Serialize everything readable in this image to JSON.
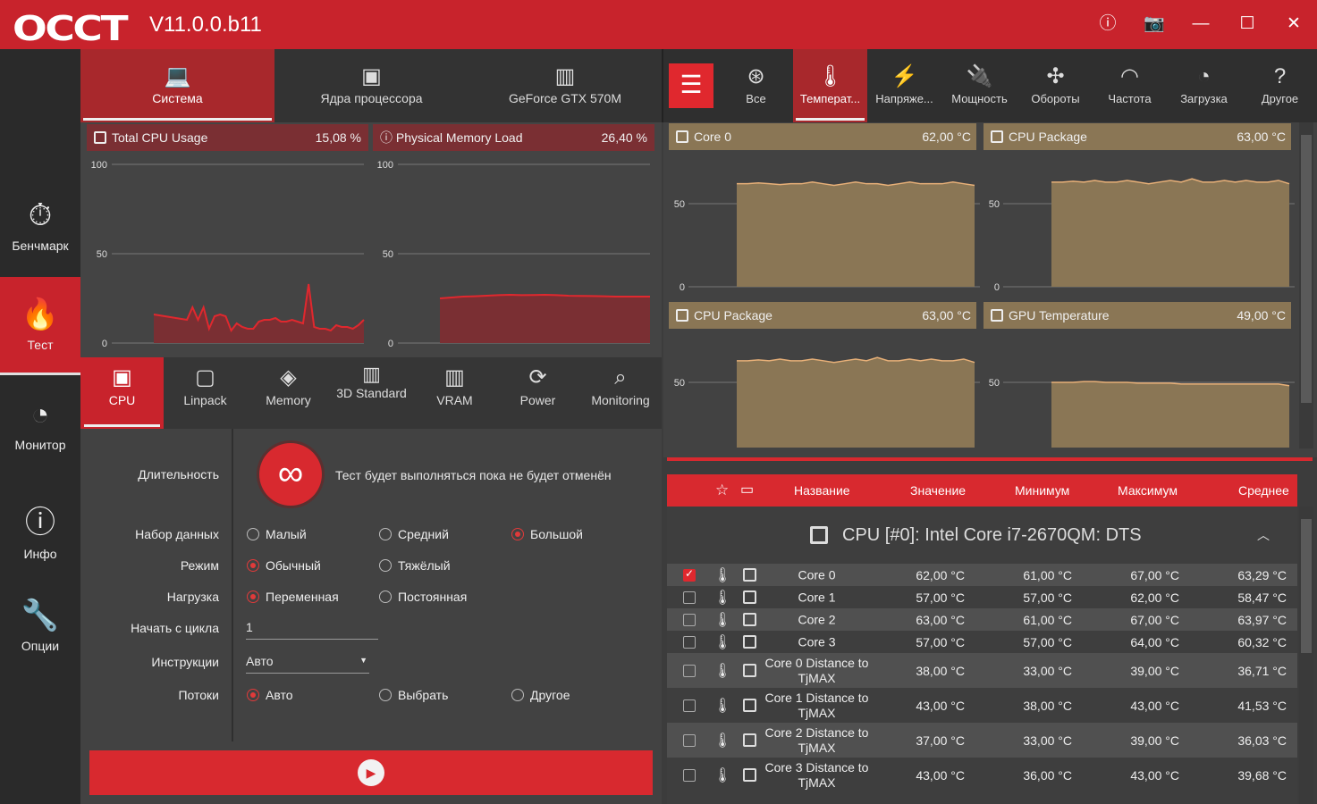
{
  "app": {
    "logo": "OCCT",
    "version": "V11.0.0.b11"
  },
  "titlebar": {
    "icons": [
      "info-icon",
      "camera-icon",
      "minimize-icon",
      "maximize-icon",
      "close-icon"
    ]
  },
  "sidebar": {
    "items": [
      {
        "label": "Бенчмарк",
        "icon": "stopwatch-icon"
      },
      {
        "label": "Тест",
        "icon": "flame-icon",
        "selected": true
      },
      {
        "label": "Монитор",
        "icon": "gauge-icon"
      },
      {
        "label": "Инфо",
        "icon": "info-icon"
      },
      {
        "label": "Опции",
        "icon": "wrench-icon"
      }
    ]
  },
  "left_tabs": [
    {
      "label": "Система",
      "selected": true
    },
    {
      "label": "Ядра процессора"
    },
    {
      "label": "GeForce GTX 570M"
    }
  ],
  "left_charts": [
    {
      "title": "Total CPU Usage",
      "value": "15,08 %",
      "ticks": [
        "100",
        "50",
        "0"
      ],
      "ymax": 100,
      "series": [
        16,
        15.5,
        15,
        14.5,
        14,
        13.5,
        13,
        20,
        13,
        20,
        8,
        15,
        16,
        15,
        7,
        11,
        9,
        8,
        8,
        12,
        13,
        13,
        14,
        12,
        12,
        13,
        12,
        11,
        33,
        9,
        8,
        8,
        7,
        10,
        9,
        9,
        8,
        10,
        13
      ]
    },
    {
      "title": "Physical Memory Load",
      "value": "26,40 %",
      "ticks": [
        "100",
        "50",
        "0"
      ],
      "ymax": 100,
      "series": [
        25,
        25.5,
        26,
        26.2,
        26.5,
        26.8,
        27,
        26.8,
        26.9,
        27,
        26.8,
        26.5,
        26.4,
        26.3,
        26.2,
        26,
        26,
        26,
        26
      ]
    }
  ],
  "test_tabs": [
    {
      "label": "CPU",
      "selected": true
    },
    {
      "label": "Linpack"
    },
    {
      "label": "Memory"
    },
    {
      "label": "3D Standard"
    },
    {
      "label": "VRAM"
    },
    {
      "label": "Power"
    },
    {
      "label": "Monitoring"
    }
  ],
  "settings": {
    "duration_label": "Длительность",
    "duration_text": "Тест будет выполняться пока не будет отменён",
    "dataset": {
      "label": "Набор данных",
      "options": [
        "Малый",
        "Средний",
        "Большой"
      ],
      "selected": 2
    },
    "mode": {
      "label": "Режим",
      "options": [
        "Обычный",
        "Тяжёлый"
      ],
      "selected": 0
    },
    "load": {
      "label": "Нагрузка",
      "options": [
        "Переменная",
        "Постоянная"
      ],
      "selected": 0
    },
    "start_cycle": {
      "label": "Начать с цикла",
      "value": "1"
    },
    "instructions": {
      "label": "Инструкции",
      "value": "Авто"
    },
    "threads": {
      "label": "Потоки",
      "options": [
        "Авто",
        "Выбрать",
        "Другое"
      ],
      "selected": 0
    }
  },
  "right_tabs": [
    {
      "label": "Все"
    },
    {
      "label": "Температ...",
      "selected": true
    },
    {
      "label": "Напряже..."
    },
    {
      "label": "Мощность"
    },
    {
      "label": "Обороты"
    },
    {
      "label": "Частота"
    },
    {
      "label": "Загрузка"
    },
    {
      "label": "Другое"
    }
  ],
  "temp_charts": [
    {
      "title": "Core 0",
      "value": "62,00 °C",
      "ticks": [
        "50",
        "0"
      ],
      "series": [
        62,
        62,
        62.5,
        62,
        61.5,
        62,
        62,
        63,
        62,
        61,
        62,
        63,
        62,
        62,
        61,
        62,
        63,
        62,
        62,
        62,
        63,
        62,
        61
      ]
    },
    {
      "title": "CPU Package",
      "value": "63,00 °C",
      "ticks": [
        "50",
        "0"
      ],
      "series": [
        63,
        63,
        63.5,
        63,
        64,
        63,
        63,
        64,
        63,
        62,
        63,
        64,
        63,
        65,
        63,
        63,
        64,
        63,
        64,
        63,
        63,
        64,
        62
      ]
    },
    {
      "title": "CPU Package",
      "value": "63,00 °C",
      "ticks": [
        "50"
      ],
      "series": [
        63,
        63,
        63.5,
        63,
        64,
        63,
        63,
        64,
        63,
        62,
        63,
        64,
        63,
        65,
        63,
        63,
        64,
        63,
        64,
        63,
        63,
        64,
        62
      ]
    },
    {
      "title": "GPU Temperature",
      "value": "49,00 °C",
      "ticks": [
        "50"
      ],
      "series": [
        50,
        50,
        50,
        50.5,
        50.5,
        50,
        50,
        50,
        49.5,
        49.5,
        49.5,
        49.5,
        49,
        49,
        49,
        49,
        49,
        49,
        49,
        49,
        49,
        49,
        48
      ]
    }
  ],
  "table": {
    "columns": [
      "Название",
      "Значение",
      "Минимум",
      "Максимум",
      "Среднее"
    ],
    "group": "CPU [#0]: Intel Core i7-2670QM: DTS",
    "rows": [
      {
        "checked": true,
        "name": "Core 0",
        "value": "62,00 °C",
        "min": "61,00 °C",
        "max": "67,00 °C",
        "avg": "63,29 °C"
      },
      {
        "checked": false,
        "name": "Core 1",
        "value": "57,00 °C",
        "min": "57,00 °C",
        "max": "62,00 °C",
        "avg": "58,47 °C"
      },
      {
        "checked": false,
        "name": "Core 2",
        "value": "63,00 °C",
        "min": "61,00 °C",
        "max": "67,00 °C",
        "avg": "63,97 °C"
      },
      {
        "checked": false,
        "name": "Core 3",
        "value": "57,00 °C",
        "min": "57,00 °C",
        "max": "64,00 °C",
        "avg": "60,32 °C"
      },
      {
        "checked": false,
        "name": "Core 0 Distance to TjMAX",
        "value": "38,00 °C",
        "min": "33,00 °C",
        "max": "39,00 °C",
        "avg": "36,71 °C"
      },
      {
        "checked": false,
        "name": "Core 1 Distance to TjMAX",
        "value": "43,00 °C",
        "min": "38,00 °C",
        "max": "43,00 °C",
        "avg": "41,53 °C"
      },
      {
        "checked": false,
        "name": "Core 2 Distance to TjMAX",
        "value": "37,00 °C",
        "min": "33,00 °C",
        "max": "39,00 °C",
        "avg": "36,03 °C"
      },
      {
        "checked": false,
        "name": "Core 3 Distance to TjMAX",
        "value": "43,00 °C",
        "min": "36,00 °C",
        "max": "43,00 °C",
        "avg": "39,68 °C"
      }
    ]
  },
  "colors": {
    "accent": "#d8292f",
    "titlebar": "#c8232c",
    "temp_chart": "#8a7655",
    "usage_chart": "#7a2f33"
  }
}
